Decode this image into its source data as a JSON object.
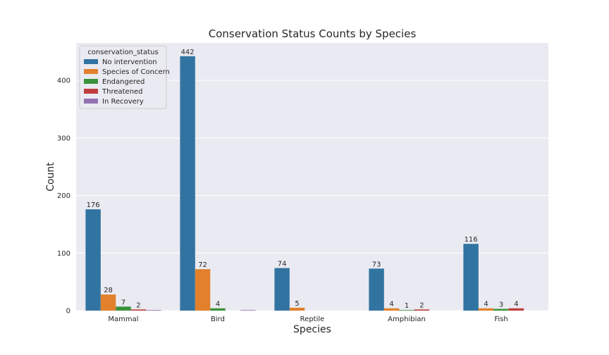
{
  "chart_data": {
    "type": "bar",
    "title": "Conservation Status Counts by Species",
    "xlabel": "Species",
    "ylabel": "Count",
    "ylim": [
      0,
      465
    ],
    "yticks": [
      0,
      100,
      200,
      300,
      400
    ],
    "categories": [
      "Mammal",
      "Bird",
      "Reptile",
      "Amphibian",
      "Fish"
    ],
    "legend_title": "conservation_status",
    "legend_position": "top-left",
    "grid": true,
    "series": [
      {
        "name": "No intervention",
        "color": "#3274a1",
        "values": [
          176,
          442,
          74,
          73,
          116
        ],
        "labels": [
          "176",
          "442",
          "74",
          "73",
          "116"
        ]
      },
      {
        "name": "Species of Concern",
        "color": "#e1812c",
        "values": [
          28,
          72,
          5,
          4,
          4
        ],
        "labels": [
          "28",
          "72",
          "5",
          "4",
          "4"
        ]
      },
      {
        "name": "Endangered",
        "color": "#3a923a",
        "values": [
          7,
          4,
          0,
          1,
          3
        ],
        "labels": [
          "7",
          "4",
          "",
          "1",
          "3"
        ]
      },
      {
        "name": "Threatened",
        "color": "#c03d3e",
        "values": [
          2,
          0,
          0,
          2,
          4
        ],
        "labels": [
          "2",
          "",
          "",
          "2",
          "4"
        ]
      },
      {
        "name": "In Recovery",
        "color": "#9372b2",
        "values": [
          1,
          1,
          0,
          0,
          0
        ],
        "labels": [
          "",
          "",
          "",
          "",
          ""
        ]
      }
    ]
  }
}
